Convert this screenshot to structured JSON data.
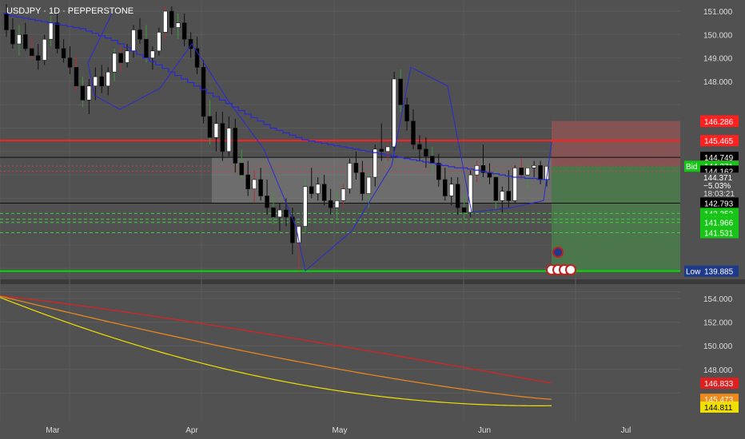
{
  "header": {
    "title": "USDJPY · 1D · PEPPERSTONE"
  },
  "colors": {
    "background": "#515151",
    "grid": "#5c5c5c",
    "candle_up": "#ffffff",
    "candle_down": "#000000",
    "ma_blue": "#2a2ad0",
    "resistance": "#ff2020",
    "support": "#00e000",
    "profit_zone": "#4b7a4b",
    "loss_zone": "#8a5353",
    "sub_red": "#e02020",
    "sub_orange": "#f08a1a",
    "sub_yellow": "#f0e000"
  },
  "chart_data": [
    {
      "type": "candlestick",
      "title": "USDJPY · 1D · PEPPERSTONE",
      "ylim": [
        139.5,
        151.4
      ],
      "y_ticks": [
        151.0,
        150.0,
        149.0,
        148.0
      ],
      "x_labels": [
        "Mar",
        "Apr",
        "May",
        "Jun",
        "Jul"
      ],
      "ohlc": [
        [
          150.9,
          151.3,
          149.9,
          150.2
        ],
        [
          150.2,
          150.7,
          149.4,
          149.6
        ],
        [
          149.6,
          150.4,
          149.1,
          150.0
        ],
        [
          150.0,
          150.5,
          149.3,
          149.4
        ],
        [
          149.4,
          149.9,
          148.9,
          149.1
        ],
        [
          149.1,
          149.6,
          148.5,
          148.9
        ],
        [
          148.9,
          150.0,
          148.7,
          149.8
        ],
        [
          149.8,
          150.8,
          149.5,
          150.5
        ],
        [
          150.5,
          150.9,
          149.2,
          149.4
        ],
        [
          149.4,
          149.8,
          148.8,
          149.0
        ],
        [
          149.0,
          149.5,
          148.3,
          148.6
        ],
        [
          148.6,
          149.1,
          147.6,
          147.8
        ],
        [
          147.8,
          148.2,
          146.9,
          147.2
        ],
        [
          147.2,
          148.1,
          146.6,
          147.8
        ],
        [
          147.8,
          148.6,
          147.2,
          148.2
        ],
        [
          148.2,
          148.7,
          147.5,
          147.8
        ],
        [
          147.8,
          148.6,
          147.4,
          148.4
        ],
        [
          148.4,
          149.4,
          148.0,
          149.2
        ],
        [
          149.2,
          149.5,
          148.4,
          148.8
        ],
        [
          148.8,
          149.6,
          148.6,
          149.3
        ],
        [
          149.3,
          150.4,
          149.0,
          150.2
        ],
        [
          150.2,
          150.7,
          149.6,
          149.8
        ],
        [
          149.8,
          150.4,
          148.8,
          149.0
        ],
        [
          149.0,
          149.5,
          148.5,
          149.3
        ],
        [
          149.3,
          150.3,
          149.1,
          150.1
        ],
        [
          150.1,
          151.2,
          149.8,
          151.0
        ],
        [
          151.0,
          151.2,
          150.0,
          150.3
        ],
        [
          150.3,
          150.9,
          149.8,
          150.5
        ],
        [
          150.5,
          150.9,
          149.5,
          149.8
        ],
        [
          149.8,
          150.1,
          149.0,
          149.4
        ],
        [
          149.4,
          149.9,
          148.3,
          148.6
        ],
        [
          148.6,
          148.9,
          146.2,
          146.5
        ],
        [
          146.5,
          147.2,
          145.3,
          145.6
        ],
        [
          145.6,
          146.7,
          145.0,
          146.2
        ],
        [
          146.2,
          146.7,
          144.6,
          145.0
        ],
        [
          145.0,
          146.5,
          144.8,
          146.0
        ],
        [
          146.0,
          146.4,
          144.1,
          144.5
        ],
        [
          144.5,
          145.1,
          143.8,
          144.0
        ],
        [
          144.0,
          144.6,
          143.1,
          143.4
        ],
        [
          143.4,
          144.2,
          142.8,
          143.8
        ],
        [
          143.8,
          144.3,
          142.9,
          143.1
        ],
        [
          143.1,
          143.8,
          142.3,
          142.6
        ],
        [
          142.6,
          143.2,
          141.9,
          142.2
        ],
        [
          142.2,
          142.8,
          141.6,
          142.5
        ],
        [
          142.5,
          143.0,
          141.8,
          142.2
        ],
        [
          142.2,
          142.6,
          140.6,
          141.1
        ],
        [
          141.1,
          141.9,
          139.9,
          141.8
        ],
        [
          141.8,
          143.8,
          141.5,
          143.5
        ],
        [
          143.5,
          144.3,
          143.0,
          143.2
        ],
        [
          143.2,
          143.9,
          142.9,
          143.6
        ],
        [
          143.6,
          144.0,
          142.7,
          142.9
        ],
        [
          142.9,
          143.4,
          142.3,
          142.6
        ],
        [
          142.6,
          143.3,
          142.1,
          142.9
        ],
        [
          142.9,
          143.6,
          142.6,
          143.4
        ],
        [
          143.4,
          144.7,
          143.2,
          144.5
        ],
        [
          144.5,
          145.0,
          143.8,
          144.1
        ],
        [
          144.1,
          144.6,
          142.9,
          143.2
        ],
        [
          143.2,
          144.1,
          142.6,
          143.9
        ],
        [
          143.9,
          145.3,
          143.5,
          145.1
        ],
        [
          145.1,
          146.2,
          144.6,
          145.0
        ],
        [
          145.0,
          145.4,
          144.6,
          145.2
        ],
        [
          145.2,
          148.4,
          145.0,
          148.1
        ],
        [
          148.1,
          148.5,
          146.7,
          147.0
        ],
        [
          147.0,
          147.3,
          145.9,
          146.3
        ],
        [
          146.3,
          146.8,
          145.1,
          145.3
        ],
        [
          145.3,
          145.7,
          144.6,
          145.1
        ],
        [
          145.1,
          145.6,
          144.3,
          144.8
        ],
        [
          144.8,
          145.2,
          144.1,
          144.5
        ],
        [
          144.5,
          144.9,
          143.5,
          143.8
        ],
        [
          143.8,
          144.3,
          142.9,
          143.1
        ],
        [
          143.1,
          143.9,
          142.7,
          143.6
        ],
        [
          143.6,
          143.9,
          142.3,
          142.6
        ],
        [
          142.6,
          143.1,
          142.1,
          142.4
        ],
        [
          142.4,
          144.2,
          142.2,
          144.0
        ],
        [
          144.0,
          144.6,
          143.7,
          144.4
        ],
        [
          144.4,
          145.3,
          143.9,
          144.1
        ],
        [
          144.1,
          144.5,
          143.6,
          143.9
        ],
        [
          143.9,
          144.2,
          142.5,
          142.9
        ],
        [
          142.9,
          143.5,
          142.4,
          143.3
        ],
        [
          143.3,
          144.2,
          142.6,
          142.9
        ],
        [
          142.9,
          144.4,
          142.8,
          144.3
        ],
        [
          144.3,
          144.7,
          143.8,
          144.0
        ],
        [
          144.0,
          144.5,
          143.4,
          144.3
        ],
        [
          144.3,
          144.6,
          143.9,
          144.4
        ],
        [
          144.4,
          144.6,
          143.6,
          143.8
        ],
        [
          143.8,
          144.3,
          143.5,
          144.37
        ]
      ],
      "blue_ma": [
        150.9,
        150.8,
        150.75,
        150.7,
        150.65,
        150.6,
        150.55,
        150.5,
        150.45,
        150.4,
        150.35,
        150.3,
        150.25,
        150.15,
        150.05,
        149.95,
        149.85,
        149.75,
        149.6,
        149.45,
        149.3,
        149.15,
        149.0,
        148.85,
        148.7,
        148.55,
        148.4,
        148.25,
        148.1,
        147.95,
        147.8,
        147.65,
        147.5,
        147.35,
        147.2,
        147.05,
        146.9,
        146.75,
        146.6,
        146.45,
        146.3,
        146.15,
        146.0,
        145.9,
        145.8,
        145.7,
        145.6,
        145.5,
        145.45,
        145.4,
        145.35,
        145.3,
        145.25,
        145.2,
        145.15,
        145.1,
        145.05,
        145.0,
        144.95,
        144.9,
        144.85,
        144.8,
        144.75,
        144.7,
        144.65,
        144.6,
        144.55,
        144.5,
        144.45,
        144.4,
        144.35,
        144.3,
        144.3,
        144.25,
        144.2,
        144.15,
        144.1,
        144.05,
        144.0,
        143.95,
        143.9,
        143.9,
        143.85,
        143.85,
        143.8,
        143.8
      ],
      "levels": [
        146.305,
        146.286,
        145.465,
        144.749,
        144.374,
        144.371,
        144.162,
        142.793,
        142.353,
        142.106,
        141.966,
        141.531,
        139.885
      ],
      "price_labels": [
        {
          "text": "146.305",
          "color": "#ff2020"
        },
        {
          "text": "146.286",
          "color": "#ff2020"
        },
        {
          "text": "145.465",
          "color": "#ff2020"
        },
        {
          "text": "144.749",
          "color": "#000000"
        },
        {
          "text": "144.374",
          "color": "#ff2020",
          "tag": "Ask"
        },
        {
          "text": "144.371",
          "color": "#18c418",
          "tag": "Bid"
        },
        {
          "text": "144.162",
          "color": "#000000"
        },
        {
          "text": "142.793",
          "color": "#000000"
        },
        {
          "text": "142.353",
          "color": "#18c418"
        },
        {
          "text": "142.106",
          "color": "#18c418"
        },
        {
          "text": "141.966",
          "color": "#18c418"
        },
        {
          "text": "141.531",
          "color": "#18c418"
        },
        {
          "text": "139.885",
          "color": "#1e3a8a",
          "tag": "Low"
        }
      ],
      "current": {
        "price": "144.371",
        "change": "−5.03%",
        "countdown": "18:03:21"
      }
    },
    {
      "type": "line",
      "ylim": [
        144.0,
        155.0
      ],
      "y_ticks": [
        154.0,
        152.0,
        150.0,
        148.0
      ],
      "series": [
        {
          "color": "#e02020",
          "start": 154.2,
          "end": 146.833
        },
        {
          "color": "#f08a1a",
          "start": 154.2,
          "end": 145.473
        },
        {
          "color": "#f0e000",
          "start": 154.1,
          "end": 144.811
        }
      ],
      "price_labels": [
        {
          "text": "146.833",
          "color": "#e02020"
        },
        {
          "text": "145.473",
          "color": "#f08a1a"
        },
        {
          "text": "144.811",
          "color": "#f0e000"
        }
      ]
    }
  ]
}
